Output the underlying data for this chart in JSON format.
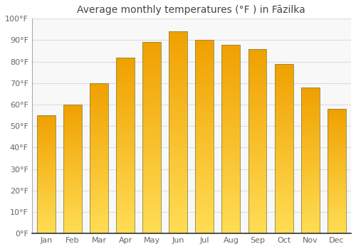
{
  "title": "Average monthly temperatures (°F ) in Fāzilka",
  "months": [
    "Jan",
    "Feb",
    "Mar",
    "Apr",
    "May",
    "Jun",
    "Jul",
    "Aug",
    "Sep",
    "Oct",
    "Nov",
    "Dec"
  ],
  "values": [
    55,
    60,
    70,
    82,
    89,
    94,
    90,
    88,
    86,
    79,
    68,
    58
  ],
  "bar_color_bottom": "#FFDD55",
  "bar_color_top": "#F0A000",
  "bar_edge_color": "#888844",
  "ylim": [
    0,
    100
  ],
  "ytick_step": 10,
  "background_color": "#FFFFFF",
  "plot_bg_color": "#F8F8F8",
  "grid_color": "#DDDDDD",
  "title_fontsize": 10,
  "tick_fontsize": 8,
  "title_color": "#444444",
  "tick_color": "#666666"
}
